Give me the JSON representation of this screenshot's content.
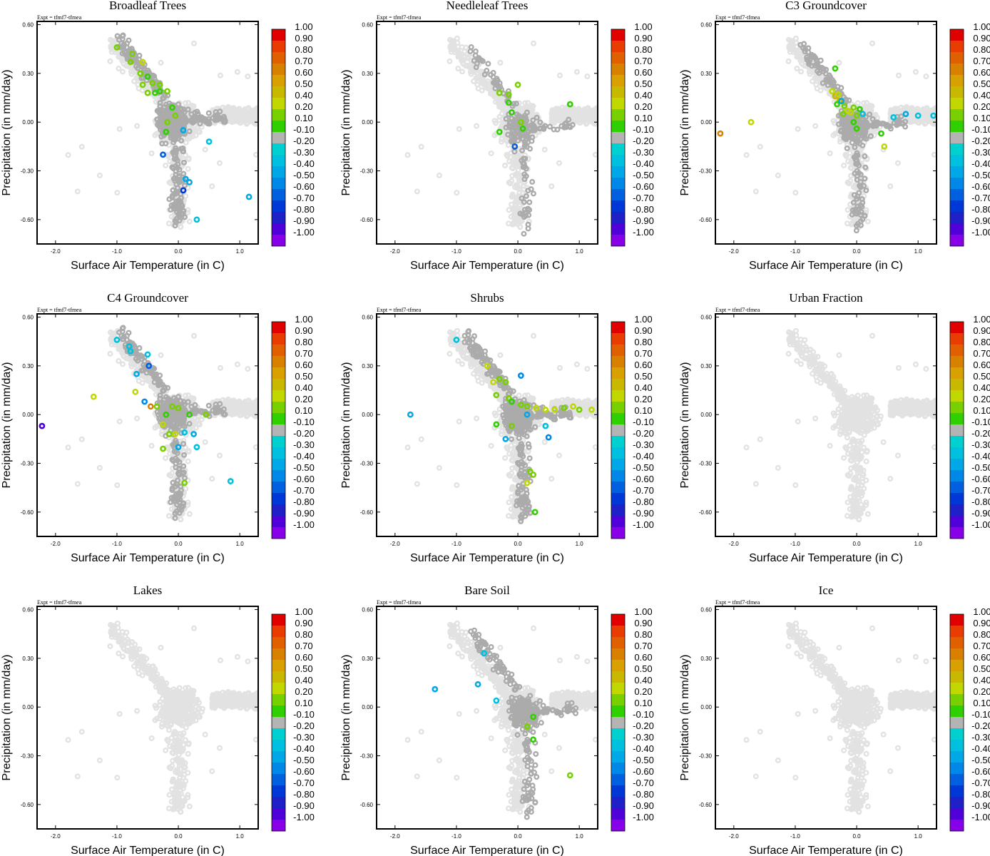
{
  "chart_data": {
    "type": "scatter",
    "figure_layout": "3x3 panels",
    "x_axis": {
      "label": "Surface Air Temperature (in C)",
      "range": [
        -2.3,
        1.3
      ],
      "ticks": [
        -2.0,
        -1.0,
        0.0,
        1.0
      ],
      "tick_labels": [
        "-2.0",
        "-1.0",
        "0.0",
        "1.0"
      ]
    },
    "y_axis": {
      "label": "Precipitation (in mm/day)",
      "range": [
        -0.75,
        0.62
      ],
      "ticks": [
        0.6,
        0.3,
        0.0,
        -0.3,
        -0.6
      ],
      "tick_labels": [
        "0.60",
        "0.30",
        "0.00",
        "-0.30",
        "-0.60"
      ]
    },
    "experiment_label": "Expt = tfmf7-tfmea",
    "colorbar": {
      "labels": [
        "1.00",
        "0.90",
        "0.80",
        "0.70",
        "0.60",
        "0.50",
        "0.40",
        "0.20",
        "0.10",
        "-0.10",
        "-0.20",
        "-0.30",
        "-0.40",
        "-0.50",
        "-0.60",
        "-0.70",
        "-0.80",
        "-0.90",
        "-1.00"
      ],
      "colors": [
        "#e00000",
        "#e83c00",
        "#e06000",
        "#d88000",
        "#d8a000",
        "#c8b800",
        "#c0d800",
        "#78d000",
        "#30d000",
        "#b4b4b4",
        "#00d0d0",
        "#00c0e0",
        "#00a8e8",
        "#0088e8",
        "#0060e0",
        "#0038d8",
        "#2020c8",
        "#5000d8",
        "#8800e8"
      ]
    },
    "panels": [
      {
        "title": "Broadleaf Trees",
        "highlighted": [
          [
            -1.0,
            0.46,
            0.2
          ],
          [
            -0.75,
            0.42,
            0.15
          ],
          [
            -0.78,
            0.37,
            0.15
          ],
          [
            -0.58,
            0.37,
            0.3
          ],
          [
            -0.62,
            0.3,
            0.15
          ],
          [
            -0.5,
            0.28,
            0.1
          ],
          [
            -0.58,
            0.23,
            0.15
          ],
          [
            -0.42,
            0.24,
            0.2
          ],
          [
            -0.3,
            0.23,
            0.15
          ],
          [
            -0.3,
            0.19,
            0.1
          ],
          [
            -0.5,
            0.18,
            0.15
          ],
          [
            -0.38,
            0.18,
            0.1
          ],
          [
            -0.18,
            0.19,
            0.2
          ],
          [
            -0.1,
            0.09,
            0.1
          ],
          [
            -0.05,
            0.04,
            0.15
          ],
          [
            -0.18,
            0.0,
            0.15
          ],
          [
            -0.2,
            -0.06,
            0.1
          ],
          [
            0.08,
            -0.05,
            -0.3
          ],
          [
            -0.25,
            -0.2,
            -0.5
          ],
          [
            0.5,
            -0.12,
            -0.2
          ],
          [
            0.12,
            -0.35,
            -0.3
          ],
          [
            0.18,
            -0.37,
            -0.3
          ],
          [
            0.08,
            -0.42,
            -0.6
          ],
          [
            1.15,
            -0.46,
            -0.3
          ],
          [
            0.3,
            -0.6,
            -0.2
          ]
        ]
      },
      {
        "title": "Needleleaf Trees",
        "highlighted": [
          [
            -0.3,
            0.18,
            0.15
          ],
          [
            -0.15,
            0.17,
            0.15
          ],
          [
            0.0,
            0.23,
            0.2
          ],
          [
            -0.15,
            0.12,
            0.1
          ],
          [
            -0.1,
            0.06,
            0.1
          ],
          [
            0.05,
            0.0,
            0.2
          ],
          [
            0.08,
            -0.04,
            0.1
          ],
          [
            -0.3,
            -0.06,
            0.1
          ],
          [
            0.85,
            0.11,
            0.1
          ],
          [
            -0.05,
            -0.15,
            -0.5
          ]
        ]
      },
      {
        "title": "C3 Groundcover",
        "highlighted": [
          [
            -0.35,
            0.33,
            0.1
          ],
          [
            -0.4,
            0.19,
            0.4
          ],
          [
            -0.35,
            0.16,
            0.5
          ],
          [
            -0.3,
            0.17,
            0.4
          ],
          [
            -0.28,
            0.13,
            0.5
          ],
          [
            -0.2,
            0.1,
            0.2
          ],
          [
            -0.15,
            0.07,
            0.4
          ],
          [
            -0.1,
            0.06,
            0.3
          ],
          [
            -0.05,
            0.09,
            0.15
          ],
          [
            0.0,
            0.04,
            0.2
          ],
          [
            0.05,
            0.08,
            0.1
          ],
          [
            -0.22,
            0.05,
            0.15
          ],
          [
            -0.05,
            0.0,
            0.1
          ],
          [
            0.1,
            0.05,
            -0.2
          ],
          [
            0.0,
            -0.04,
            0.1
          ],
          [
            -0.32,
            0.11,
            0.1
          ],
          [
            0.4,
            -0.07,
            0.1
          ],
          [
            0.45,
            -0.15,
            0.4
          ],
          [
            -0.25,
            0.13,
            -0.3
          ],
          [
            0.6,
            0.03,
            -0.2
          ],
          [
            0.8,
            0.05,
            -0.3
          ],
          [
            1.0,
            0.04,
            -0.2
          ],
          [
            1.25,
            0.04,
            -0.2
          ],
          [
            -1.72,
            0.0,
            0.3
          ],
          [
            -2.22,
            -0.07,
            0.7
          ]
        ]
      },
      {
        "title": "C4 Groundcover",
        "highlighted": [
          [
            -1.0,
            0.46,
            -0.2
          ],
          [
            -0.8,
            0.42,
            -0.2
          ],
          [
            -0.78,
            0.39,
            -0.2
          ],
          [
            -0.5,
            0.37,
            -0.2
          ],
          [
            -0.48,
            0.3,
            -0.5
          ],
          [
            -0.68,
            0.25,
            -0.3
          ],
          [
            -0.7,
            0.14,
            0.4
          ],
          [
            -1.38,
            0.11,
            0.3
          ],
          [
            -0.55,
            0.08,
            -0.4
          ],
          [
            -0.45,
            0.05,
            0.7
          ],
          [
            -0.35,
            0.05,
            0.15
          ],
          [
            -0.1,
            0.05,
            0.15
          ],
          [
            0.0,
            0.04,
            0.2
          ],
          [
            -0.2,
            0.0,
            0.1
          ],
          [
            0.18,
            0.0,
            0.1
          ],
          [
            0.45,
            0.0,
            0.15
          ],
          [
            -0.25,
            -0.06,
            0.3
          ],
          [
            -0.15,
            -0.12,
            0.2
          ],
          [
            -0.05,
            -0.12,
            0.3
          ],
          [
            0.1,
            -0.11,
            -0.2
          ],
          [
            0.25,
            -0.12,
            -0.3
          ],
          [
            0.3,
            -0.2,
            -0.2
          ],
          [
            -0.25,
            -0.21,
            0.2
          ],
          [
            0.0,
            -0.2,
            -0.3
          ],
          [
            0.1,
            -0.42,
            0.2
          ],
          [
            0.85,
            -0.41,
            -0.2
          ],
          [
            -2.22,
            -0.07,
            -0.8
          ]
        ]
      },
      {
        "title": "Shrubs",
        "highlighted": [
          [
            -1.0,
            0.46,
            -0.2
          ],
          [
            -0.5,
            0.3,
            0.4
          ],
          [
            0.05,
            0.24,
            -0.4
          ],
          [
            -0.4,
            0.2,
            0.3
          ],
          [
            -0.3,
            0.22,
            0.2
          ],
          [
            -0.2,
            0.2,
            0.15
          ],
          [
            -0.35,
            0.12,
            0.2
          ],
          [
            -0.15,
            0.1,
            0.15
          ],
          [
            -0.1,
            0.08,
            0.1
          ],
          [
            0.05,
            0.06,
            0.15
          ],
          [
            0.15,
            0.05,
            0.2
          ],
          [
            0.3,
            0.04,
            0.3
          ],
          [
            0.45,
            0.03,
            0.4
          ],
          [
            0.6,
            0.03,
            0.3
          ],
          [
            0.75,
            0.04,
            0.2
          ],
          [
            0.9,
            0.05,
            0.3
          ],
          [
            1.0,
            0.03,
            0.2
          ],
          [
            1.2,
            0.03,
            0.3
          ],
          [
            0.15,
            0.0,
            -0.3
          ],
          [
            -0.35,
            -0.06,
            0.1
          ],
          [
            -0.1,
            -0.07,
            0.2
          ],
          [
            -0.2,
            -0.15,
            -0.3
          ],
          [
            0.45,
            -0.07,
            -0.2
          ],
          [
            0.5,
            -0.14,
            -0.4
          ],
          [
            0.2,
            -0.35,
            0.15
          ],
          [
            0.25,
            -0.37,
            0.15
          ],
          [
            0.15,
            -0.42,
            0.3
          ],
          [
            0.28,
            -0.6,
            0.1
          ],
          [
            -1.75,
            0.0,
            -0.3
          ]
        ]
      },
      {
        "title": "Urban Fraction",
        "highlighted": []
      },
      {
        "title": "Lakes",
        "highlighted": []
      },
      {
        "title": "Bare Soil",
        "highlighted": [
          [
            -0.55,
            0.33,
            -0.2
          ],
          [
            -0.65,
            0.14,
            -0.3
          ],
          [
            -1.35,
            0.11,
            -0.3
          ],
          [
            -0.35,
            0.04,
            -0.2
          ],
          [
            0.25,
            -0.06,
            0.1
          ],
          [
            0.15,
            -0.12,
            0.15
          ],
          [
            0.25,
            -0.2,
            0.1
          ],
          [
            0.85,
            -0.42,
            0.15
          ]
        ]
      },
      {
        "title": "Ice",
        "highlighted": []
      }
    ]
  }
}
